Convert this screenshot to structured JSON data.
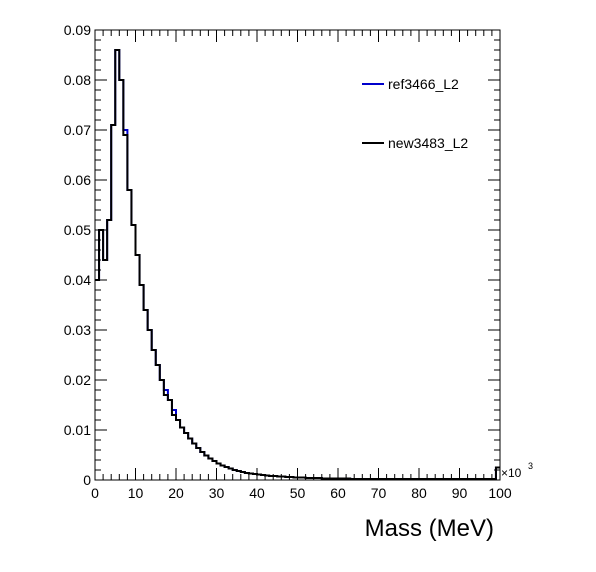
{
  "chart_data": {
    "type": "line",
    "title": "",
    "xlabel": "Mass (MeV)",
    "ylabel": "",
    "x_multiplier": "×10",
    "x_multiplier_exp": "3",
    "xlim": [
      0,
      100
    ],
    "ylim": [
      0,
      0.09
    ],
    "xticks": [
      "0",
      "10",
      "20",
      "30",
      "40",
      "50",
      "60",
      "70",
      "80",
      "90",
      "100"
    ],
    "yticks": [
      "0",
      "0.01",
      "0.02",
      "0.03",
      "0.04",
      "0.05",
      "0.06",
      "0.07",
      "0.08",
      "0.09"
    ],
    "grid": false,
    "legend_position": "top-right",
    "bin_width": 1,
    "x_start": 0,
    "series": [
      {
        "name": "ref3466_L2",
        "color": "#0000cc",
        "values": [
          0.04,
          0.05,
          0.044,
          0.052,
          0.071,
          0.086,
          0.08,
          0.07,
          0.058,
          0.051,
          0.045,
          0.039,
          0.034,
          0.03,
          0.026,
          0.023,
          0.02,
          0.018,
          0.016,
          0.014,
          0.012,
          0.0105,
          0.0094,
          0.0083,
          0.0073,
          0.0064,
          0.0056,
          0.0049,
          0.0043,
          0.0038,
          0.0033,
          0.0029,
          0.0026,
          0.0023,
          0.002,
          0.0018,
          0.0016,
          0.0014,
          0.0013,
          0.0012,
          0.0011,
          0.001,
          0.0009,
          0.0008,
          0.0008,
          0.0007,
          0.0007,
          0.0006,
          0.0006,
          0.0005,
          0.0005,
          0.0005,
          0.0004,
          0.0004,
          0.0004,
          0.0004,
          0.0003,
          0.0003,
          0.0003,
          0.0003,
          0.0003,
          0.0003,
          0.0003,
          0.0002,
          0.0002,
          0.0002,
          0.0002,
          0.0002,
          0.0002,
          0.0002,
          0.0002,
          0.0002,
          0.0002,
          0.0002,
          0.0002,
          0.0002,
          0.0002,
          0.0002,
          0.0002,
          0.0002,
          0.0002,
          0.0002,
          0.0002,
          0.0002,
          0.0002,
          0.0002,
          0.0002,
          0.0002,
          0.0002,
          0.0002,
          0.0002,
          0.0002,
          0.0002,
          0.0002,
          0.0002,
          0.0002,
          0.0002,
          0.0002,
          0.0002,
          0.0025
        ]
      },
      {
        "name": "new3483_L2",
        "color": "#000000",
        "values": [
          0.04,
          0.05,
          0.044,
          0.052,
          0.071,
          0.086,
          0.08,
          0.069,
          0.058,
          0.051,
          0.045,
          0.039,
          0.034,
          0.03,
          0.026,
          0.023,
          0.02,
          0.017,
          0.016,
          0.013,
          0.012,
          0.0105,
          0.0094,
          0.0083,
          0.0073,
          0.0064,
          0.0056,
          0.0049,
          0.0043,
          0.0038,
          0.0033,
          0.0029,
          0.0026,
          0.0023,
          0.002,
          0.0018,
          0.0016,
          0.0014,
          0.0013,
          0.0012,
          0.0011,
          0.001,
          0.0009,
          0.0008,
          0.0008,
          0.0007,
          0.0007,
          0.0006,
          0.0006,
          0.0005,
          0.0005,
          0.0005,
          0.0004,
          0.0004,
          0.0004,
          0.0004,
          0.0003,
          0.0003,
          0.0003,
          0.0003,
          0.0003,
          0.0003,
          0.0003,
          0.0002,
          0.0002,
          0.0002,
          0.0002,
          0.0002,
          0.0002,
          0.0002,
          0.0002,
          0.0002,
          0.0002,
          0.0002,
          0.0002,
          0.0002,
          0.0002,
          0.0002,
          0.0002,
          0.0002,
          0.0002,
          0.0002,
          0.0002,
          0.0002,
          0.0002,
          0.0002,
          0.0002,
          0.0002,
          0.0002,
          0.0002,
          0.0002,
          0.0002,
          0.0002,
          0.0002,
          0.0002,
          0.0002,
          0.0002,
          0.0002,
          0.0002,
          0.0025
        ]
      }
    ]
  }
}
